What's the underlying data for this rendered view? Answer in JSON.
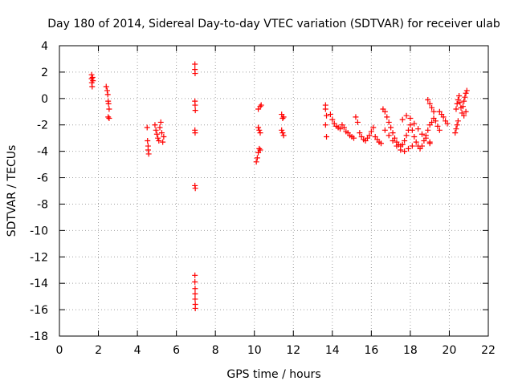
{
  "chart_data": {
    "type": "scatter",
    "title": "Day 180 of 2014, Sidereal Day-to-day VTEC variation (SDTVAR) for receiver ulab",
    "xlabel": "GPS time / hours",
    "ylabel": "SDTVAR / TECUs",
    "xlim": [
      0,
      22
    ],
    "ylim": [
      -18,
      4
    ],
    "xticks": [
      0,
      2,
      4,
      6,
      8,
      10,
      12,
      14,
      16,
      18,
      20,
      22
    ],
    "yticks": [
      4,
      2,
      0,
      -2,
      -4,
      -6,
      -8,
      -10,
      -12,
      -14,
      -16,
      -18
    ],
    "grid": true,
    "marker": "+",
    "marker_color": "#ff0000",
    "series": [
      {
        "name": "SDTVAR",
        "points": [
          [
            1.65,
            1.8
          ],
          [
            1.65,
            1.5
          ],
          [
            1.66,
            1.2
          ],
          [
            1.68,
            0.9
          ],
          [
            1.7,
            1.6
          ],
          [
            1.72,
            1.35
          ],
          [
            2.4,
            0.9
          ],
          [
            2.45,
            0.6
          ],
          [
            2.48,
            0.3
          ],
          [
            2.5,
            -0.2
          ],
          [
            2.52,
            -0.4
          ],
          [
            2.55,
            -0.8
          ],
          [
            2.5,
            -1.4
          ],
          [
            2.55,
            -1.5
          ],
          [
            4.5,
            -2.2
          ],
          [
            4.52,
            -3.2
          ],
          [
            4.55,
            -3.6
          ],
          [
            4.55,
            -3.9
          ],
          [
            4.58,
            -4.2
          ],
          [
            4.9,
            -2.0
          ],
          [
            4.95,
            -2.4
          ],
          [
            5.0,
            -2.7
          ],
          [
            5.05,
            -3.0
          ],
          [
            5.1,
            -3.2
          ],
          [
            5.15,
            -2.2
          ],
          [
            5.2,
            -1.8
          ],
          [
            5.25,
            -2.6
          ],
          [
            5.3,
            -3.3
          ],
          [
            5.35,
            -2.9
          ],
          [
            6.95,
            2.6
          ],
          [
            6.95,
            2.2
          ],
          [
            6.96,
            1.9
          ],
          [
            6.95,
            -0.2
          ],
          [
            6.96,
            -0.5
          ],
          [
            6.97,
            -0.9
          ],
          [
            6.95,
            -2.4
          ],
          [
            6.96,
            -2.6
          ],
          [
            6.95,
            -6.6
          ],
          [
            6.97,
            -6.8
          ],
          [
            6.95,
            -13.4
          ],
          [
            6.95,
            -13.9
          ],
          [
            6.96,
            -14.4
          ],
          [
            6.96,
            -14.8
          ],
          [
            6.96,
            -15.2
          ],
          [
            6.97,
            -15.6
          ],
          [
            6.97,
            -15.9
          ],
          [
            10.1,
            -4.8
          ],
          [
            10.15,
            -4.5
          ],
          [
            10.2,
            -4.1
          ],
          [
            10.25,
            -3.8
          ],
          [
            10.3,
            -3.9
          ],
          [
            10.2,
            -2.2
          ],
          [
            10.25,
            -2.4
          ],
          [
            10.3,
            -2.6
          ],
          [
            10.2,
            -0.8
          ],
          [
            10.3,
            -0.6
          ],
          [
            10.35,
            -0.5
          ],
          [
            11.4,
            -1.2
          ],
          [
            11.45,
            -1.5
          ],
          [
            11.5,
            -1.4
          ],
          [
            11.4,
            -2.4
          ],
          [
            11.45,
            -2.6
          ],
          [
            11.5,
            -2.8
          ],
          [
            13.65,
            -0.5
          ],
          [
            13.65,
            -0.8
          ],
          [
            13.7,
            -1.3
          ],
          [
            13.65,
            -2.0
          ],
          [
            13.7,
            -2.9
          ],
          [
            13.9,
            -1.2
          ],
          [
            14.0,
            -1.6
          ],
          [
            14.1,
            -1.9
          ],
          [
            14.2,
            -2.1
          ],
          [
            14.3,
            -2.2
          ],
          [
            14.4,
            -2.3
          ],
          [
            14.5,
            -2.0
          ],
          [
            14.6,
            -2.2
          ],
          [
            14.7,
            -2.5
          ],
          [
            14.8,
            -2.6
          ],
          [
            14.9,
            -2.8
          ],
          [
            15.0,
            -2.9
          ],
          [
            15.1,
            -3.0
          ],
          [
            15.2,
            -1.4
          ],
          [
            15.3,
            -1.8
          ],
          [
            15.4,
            -2.6
          ],
          [
            15.5,
            -2.9
          ],
          [
            15.6,
            -3.1
          ],
          [
            15.7,
            -3.2
          ],
          [
            15.8,
            -3.0
          ],
          [
            15.9,
            -2.8
          ],
          [
            16.0,
            -2.5
          ],
          [
            16.1,
            -2.2
          ],
          [
            16.2,
            -2.9
          ],
          [
            16.3,
            -3.1
          ],
          [
            16.4,
            -3.3
          ],
          [
            16.5,
            -3.4
          ],
          [
            16.6,
            -0.8
          ],
          [
            16.7,
            -1.0
          ],
          [
            16.8,
            -1.4
          ],
          [
            16.9,
            -1.8
          ],
          [
            17.0,
            -2.2
          ],
          [
            17.1,
            -2.6
          ],
          [
            17.2,
            -3.0
          ],
          [
            17.3,
            -3.3
          ],
          [
            17.4,
            -3.5
          ],
          [
            17.5,
            -3.6
          ],
          [
            17.6,
            -3.5
          ],
          [
            17.7,
            -3.2
          ],
          [
            17.8,
            -2.8
          ],
          [
            17.9,
            -2.4
          ],
          [
            18.0,
            -2.0
          ],
          [
            18.1,
            -2.4
          ],
          [
            18.2,
            -2.9
          ],
          [
            18.3,
            -3.3
          ],
          [
            18.4,
            -3.6
          ],
          [
            18.5,
            -3.8
          ],
          [
            18.6,
            -3.6
          ],
          [
            18.7,
            -3.2
          ],
          [
            18.8,
            -2.8
          ],
          [
            18.9,
            -2.4
          ],
          [
            19.0,
            -2.0
          ],
          [
            19.1,
            -1.8
          ],
          [
            19.2,
            -1.5
          ],
          [
            19.3,
            -1.7
          ],
          [
            19.4,
            -2.1
          ],
          [
            19.5,
            -2.4
          ],
          [
            16.7,
            -2.4
          ],
          [
            16.9,
            -2.8
          ],
          [
            17.1,
            -3.2
          ],
          [
            17.3,
            -3.6
          ],
          [
            17.5,
            -3.9
          ],
          [
            17.7,
            -4.0
          ],
          [
            17.9,
            -3.8
          ],
          [
            18.1,
            -3.6
          ],
          [
            17.6,
            -1.6
          ],
          [
            17.8,
            -1.3
          ],
          [
            18.0,
            -1.5
          ],
          [
            18.2,
            -1.9
          ],
          [
            18.4,
            -2.3
          ],
          [
            18.6,
            -2.7
          ],
          [
            18.8,
            -3.0
          ],
          [
            19.0,
            -3.3
          ],
          [
            18.9,
            -0.1
          ],
          [
            19.0,
            -0.4
          ],
          [
            19.1,
            -0.7
          ],
          [
            19.2,
            -1.0
          ],
          [
            19.0,
            -3.4
          ],
          [
            19.5,
            -1.0
          ],
          [
            19.6,
            -1.2
          ],
          [
            19.7,
            -1.4
          ],
          [
            19.8,
            -1.7
          ],
          [
            19.9,
            -1.9
          ],
          [
            20.3,
            -2.6
          ],
          [
            20.35,
            -2.3
          ],
          [
            20.4,
            -2.0
          ],
          [
            20.45,
            -1.7
          ],
          [
            20.35,
            -0.8
          ],
          [
            20.4,
            -0.4
          ],
          [
            20.45,
            -0.1
          ],
          [
            20.5,
            0.2
          ],
          [
            20.55,
            -0.3
          ],
          [
            20.6,
            -0.7
          ],
          [
            20.65,
            -1.1
          ],
          [
            20.7,
            -0.6
          ],
          [
            20.75,
            -0.2
          ],
          [
            20.8,
            0.1
          ],
          [
            20.85,
            0.4
          ],
          [
            20.9,
            0.6
          ],
          [
            20.75,
            -1.3
          ],
          [
            20.85,
            -1.0
          ]
        ]
      }
    ]
  }
}
